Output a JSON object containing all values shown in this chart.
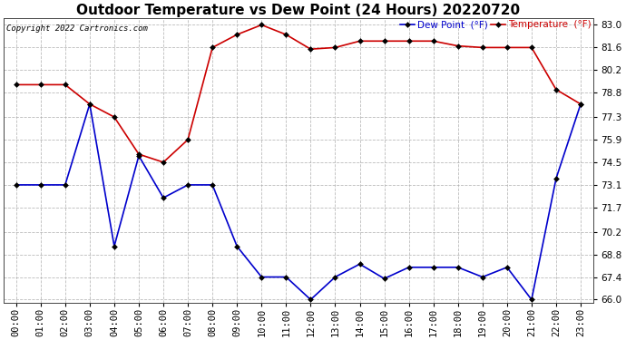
{
  "title": "Outdoor Temperature vs Dew Point (24 Hours) 20220720",
  "copyright": "Copyright 2022 Cartronics.com",
  "legend_dew": "Dew Point  (°F)",
  "legend_temp": "Temperature  (°F)",
  "hours": [
    "00:00",
    "01:00",
    "02:00",
    "03:00",
    "04:00",
    "05:00",
    "06:00",
    "07:00",
    "08:00",
    "09:00",
    "10:00",
    "11:00",
    "12:00",
    "13:00",
    "14:00",
    "15:00",
    "16:00",
    "17:00",
    "18:00",
    "19:00",
    "20:00",
    "21:00",
    "22:00",
    "23:00"
  ],
  "temperature": [
    79.3,
    79.3,
    79.3,
    78.1,
    77.3,
    75.0,
    74.5,
    75.9,
    81.6,
    82.4,
    83.0,
    82.4,
    81.5,
    81.6,
    82.0,
    82.0,
    82.0,
    82.0,
    81.7,
    81.6,
    81.6,
    81.6,
    79.0,
    78.1
  ],
  "dew_point": [
    73.1,
    73.1,
    73.1,
    78.1,
    69.3,
    74.9,
    72.3,
    73.1,
    73.1,
    69.3,
    67.4,
    67.4,
    66.0,
    67.4,
    68.2,
    67.3,
    68.0,
    68.0,
    68.0,
    67.4,
    68.0,
    66.0,
    73.5,
    78.1
  ],
  "ylim_min": 66.0,
  "ylim_max": 83.0,
  "yticks": [
    66.0,
    67.4,
    68.8,
    70.2,
    71.7,
    73.1,
    74.5,
    75.9,
    77.3,
    78.8,
    80.2,
    81.6,
    83.0
  ],
  "temp_color": "#cc0000",
  "dew_color": "#0000cc",
  "grid_color": "#aaaaaa",
  "background_color": "#ffffff",
  "title_fontsize": 11,
  "tick_fontsize": 7.5,
  "copyright_fontsize": 6.5
}
